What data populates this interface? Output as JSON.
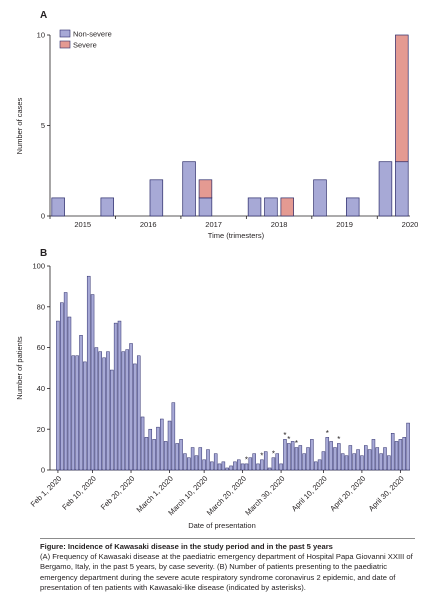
{
  "colors": {
    "non_severe": "#a7a9d6",
    "severe": "#e49a92",
    "bar_stroke": "#2b2b6a",
    "axis": "#231f20",
    "gridline": "#bbbbbb"
  },
  "chart_data": [
    {
      "panel_label": "A",
      "type": "bar",
      "stacked": true,
      "title": "",
      "xlabel": "Time (trimesters)",
      "ylabel": "Number of cases",
      "ylim": [
        0,
        10
      ],
      "yticks": [
        0,
        5,
        10
      ],
      "x_tick_labels": [
        "2015",
        "2016",
        "2017",
        "2018",
        "2019",
        "2020"
      ],
      "legend": {
        "position": "top-left",
        "entries": [
          "Non-severe",
          "Severe"
        ]
      },
      "grid": false,
      "categories": [
        "2015 T1",
        "2015 T2",
        "2015 T3",
        "2015 T4",
        "2016 T1",
        "2016 T2",
        "2016 T3",
        "2016 T4",
        "2017 T1",
        "2017 T2",
        "2017 T3",
        "2017 T4",
        "2018 T1",
        "2018 T2",
        "2018 T3",
        "2018 T4",
        "2019 T1",
        "2019 T2",
        "2019 T3",
        "2019 T4",
        "2020 T1",
        "2020 T2"
      ],
      "series": [
        {
          "name": "Non-severe",
          "values": [
            1,
            0,
            0,
            1,
            0,
            0,
            2,
            0,
            3,
            1,
            0,
            0,
            1,
            1,
            0,
            0,
            2,
            0,
            1,
            0,
            3,
            3
          ]
        },
        {
          "name": "Severe",
          "values": [
            0,
            0,
            0,
            0,
            0,
            0,
            0,
            0,
            0,
            1,
            0,
            0,
            0,
            0,
            1,
            0,
            0,
            0,
            0,
            0,
            0,
            7
          ]
        }
      ]
    },
    {
      "panel_label": "B",
      "type": "bar",
      "title": "",
      "xlabel": "Date of presentation",
      "ylabel": "Number of patients",
      "ylim": [
        0,
        100
      ],
      "yticks": [
        0,
        20,
        40,
        60,
        80,
        100
      ],
      "x_tick_labels": [
        "Feb 1, 2020",
        "Feb 10, 2020",
        "Feb 20, 2020",
        "March 1, 2020",
        "March 10, 2020",
        "March 20, 2020",
        "March 30, 2020",
        "April 10, 2020",
        "April 20, 2020",
        "April 30, 2020"
      ],
      "x_tick_days": [
        0,
        9,
        19,
        29,
        38,
        48,
        58,
        69,
        79,
        89
      ],
      "grid": false,
      "asterisk_marker": "*",
      "asterisk_days": [
        49,
        53,
        56,
        59,
        60,
        62,
        70,
        73
      ],
      "values": [
        73,
        82,
        87,
        75,
        56,
        56,
        66,
        53,
        95,
        86,
        60,
        58,
        55,
        58,
        49,
        72,
        73,
        58,
        59,
        62,
        52,
        56,
        26,
        16,
        20,
        15,
        21,
        25,
        14,
        24,
        33,
        13,
        15,
        8,
        6,
        11,
        7,
        11,
        5,
        10,
        4,
        8,
        3,
        4,
        1,
        2,
        4,
        5,
        3,
        3,
        6,
        8,
        3,
        5,
        9,
        1,
        6,
        8,
        3,
        15,
        13,
        14,
        11,
        12,
        8,
        11,
        15,
        4,
        5,
        9,
        16,
        14,
        11,
        13,
        8,
        7,
        12,
        8,
        10,
        7,
        12,
        10,
        15,
        11,
        8,
        11,
        7,
        18,
        14,
        15,
        16,
        23
      ]
    }
  ],
  "caption": {
    "title": "Figure: Incidence of Kawasaki disease in the study period and in the past 5 years",
    "body": "(A) Frequency of Kawasaki disease at the paediatric emergency department of Hospital Papa Giovanni XXIII of Bergamo, Italy, in the past 5 years, by case severity. (B) Number of patients presenting to the paediatric emergency department during the severe acute respiratory syndrome coronavirus 2 epidemic, and date of presentation of ten patients with Kawasaki-like disease (indicated by asterisks)."
  }
}
